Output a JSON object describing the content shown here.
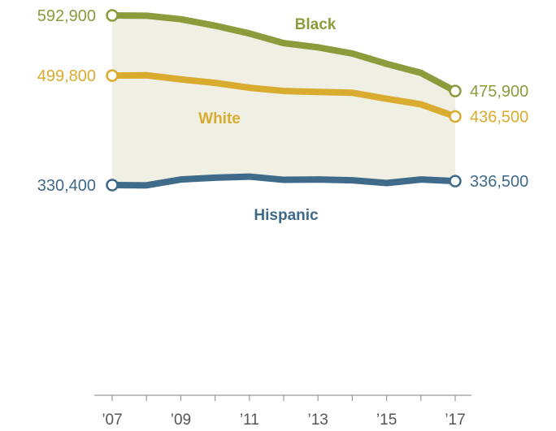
{
  "chart_data": {
    "type": "line",
    "x": [
      2007,
      2008,
      2009,
      2010,
      2011,
      2012,
      2013,
      2014,
      2015,
      2016,
      2017
    ],
    "xtick_labels": [
      "’07",
      "’09",
      "’11",
      "’13",
      "’15",
      "’17"
    ],
    "xtick_values": [
      2007,
      2009,
      2011,
      2013,
      2015,
      2017
    ],
    "ylim": [
      0,
      620000
    ],
    "grid": false,
    "shaded_range": [
      "Black",
      "Hispanic"
    ],
    "series": [
      {
        "name": "Black",
        "color": "#8C9B3C",
        "values": [
          592900,
          592500,
          587000,
          577000,
          565000,
          550000,
          543500,
          534000,
          518000,
          504000,
          475900
        ],
        "start_label": "592,900",
        "end_label": "475,900"
      },
      {
        "name": "White",
        "color": "#D9AB2E",
        "values": [
          499800,
          500300,
          494000,
          488500,
          481000,
          476000,
          474500,
          473200,
          464000,
          455300,
          436500
        ],
        "start_label": "499,800",
        "end_label": "436,500"
      },
      {
        "name": "Hispanic",
        "color": "#3F6A8A",
        "values": [
          330400,
          330000,
          339000,
          341800,
          343500,
          338500,
          339000,
          337800,
          333500,
          339000,
          336500
        ],
        "start_label": "330,400",
        "end_label": "336,500"
      }
    ]
  }
}
